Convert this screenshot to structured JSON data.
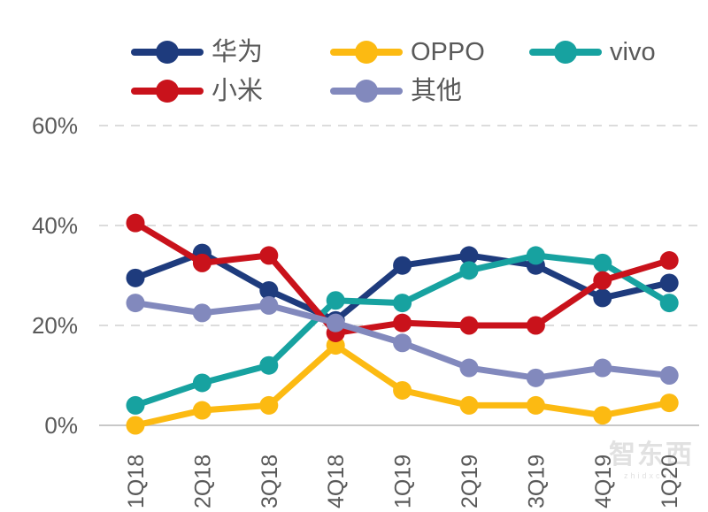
{
  "watermark": {
    "logo_text": "智东西",
    "sub_text": "zhidxcom"
  },
  "chart_data": {
    "type": "line",
    "title": "",
    "xlabel": "",
    "ylabel": "",
    "categories": [
      "1Q18",
      "2Q18",
      "3Q18",
      "4Q18",
      "1Q19",
      "2Q19",
      "3Q19",
      "4Q19",
      "1Q20"
    ],
    "series": [
      {
        "name": "华为",
        "color": "#1e3b7d",
        "values": [
          29.5,
          34.5,
          27,
          21,
          32,
          34,
          32,
          25.5,
          28.5
        ]
      },
      {
        "name": "OPPO",
        "color": "#fcba12",
        "values": [
          0,
          3,
          4,
          16,
          7,
          4,
          4,
          2,
          4.5
        ]
      },
      {
        "name": "vivo",
        "color": "#17a2a0",
        "values": [
          4,
          8.5,
          12,
          25,
          24.5,
          31,
          34,
          32.5,
          24.5
        ]
      },
      {
        "name": "小米",
        "color": "#c9121b",
        "values": [
          40.5,
          32.5,
          34,
          18.5,
          20.5,
          20,
          20,
          29,
          33
        ]
      },
      {
        "name": "其他",
        "color": "#8289bd",
        "values": [
          24.5,
          22.5,
          24,
          20.5,
          16.5,
          11.5,
          9.5,
          11.5,
          10
        ]
      }
    ],
    "y_ticks": [
      "0%",
      "20%",
      "40%",
      "60%"
    ],
    "y_tick_values": [
      0,
      20,
      40,
      60
    ],
    "ylim": [
      0,
      60
    ],
    "grid": "horizontal dashed, solid baseline at 0%",
    "legend_position": "top, two rows",
    "x_label_rotation_deg": -90,
    "text_color": "#595959",
    "grid_color": "#dcdcdc",
    "axis_line_color": "#c8c8c8"
  }
}
